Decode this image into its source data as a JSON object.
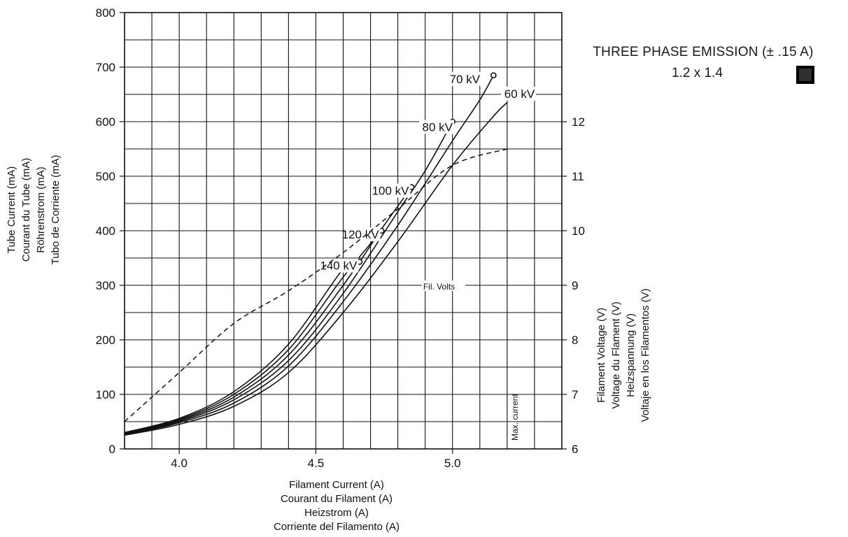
{
  "legend": {
    "title": "THREE PHASE EMISSION (± .15 A)",
    "entry": "1.2 x 1.4",
    "swatch_color": "#2f2f2f"
  },
  "chart_data": {
    "type": "line",
    "xlabel": [
      "Filament Current (A)",
      "Courant du Filament (A)",
      "Heizstrom (A)",
      "Corriente del Filamento (A)"
    ],
    "ylabel": [
      "Tube Current (mA)",
      "Courant du Tube (mA)",
      "Röhrenstrom (mA)",
      "Tubo de Corriente (mA)"
    ],
    "y2label": [
      "Filament Voltage (V)",
      "Voltage du Flament  (V)",
      "Heizspannung (V)",
      "Voltaje en los Filamentos (V)"
    ],
    "xlim": [
      3.8,
      5.4
    ],
    "ylim": [
      0,
      800
    ],
    "y2lim": [
      6,
      12
    ],
    "x_ticks": [
      {
        "value": 4.0,
        "label": "4.0"
      },
      {
        "value": 4.5,
        "label": "4.5"
      },
      {
        "value": 5.0,
        "label": "5.0"
      }
    ],
    "y_ticks": [
      {
        "value": 0,
        "label": "0"
      },
      {
        "value": 100,
        "label": "100"
      },
      {
        "value": 200,
        "label": "200"
      },
      {
        "value": 300,
        "label": "300"
      },
      {
        "value": 400,
        "label": "400"
      },
      {
        "value": 500,
        "label": "500"
      },
      {
        "value": 600,
        "label": "600"
      },
      {
        "value": 700,
        "label": "700"
      },
      {
        "value": 800,
        "label": "800"
      }
    ],
    "y2_ticks": [
      {
        "value": 6,
        "label": "6"
      },
      {
        "value": 7,
        "label": "7"
      },
      {
        "value": 8,
        "label": "8"
      },
      {
        "value": 9,
        "label": "9"
      },
      {
        "value": 10,
        "label": "10"
      },
      {
        "value": 11,
        "label": "11"
      },
      {
        "value": 12,
        "label": "12"
      }
    ],
    "grid": true,
    "series": [
      {
        "name": "60 kV",
        "label_pos": [
          5.27,
          645
        ],
        "x": [
          3.8,
          4.0,
          4.2,
          4.4,
          4.6,
          4.8,
          5.0,
          5.15,
          5.2
        ],
        "y": [
          25,
          45,
          78,
          140,
          250,
          380,
          520,
          610,
          635
        ],
        "end_marker": false
      },
      {
        "name": "70 kV",
        "label_pos": [
          5.07,
          672
        ],
        "x": [
          3.8,
          4.0,
          4.2,
          4.4,
          4.6,
          4.8,
          5.0,
          5.1,
          5.15
        ],
        "y": [
          26,
          48,
          84,
          152,
          270,
          410,
          565,
          640,
          685
        ],
        "end_marker": true
      },
      {
        "name": "80 kV",
        "label_pos": [
          4.97,
          584
        ],
        "x": [
          3.8,
          4.0,
          4.2,
          4.4,
          4.6,
          4.8,
          4.9,
          5.0
        ],
        "y": [
          27,
          50,
          90,
          162,
          285,
          435,
          510,
          600
        ],
        "end_marker": true
      },
      {
        "name": "100 kV",
        "label_pos": [
          4.81,
          467
        ],
        "x": [
          3.8,
          4.0,
          4.2,
          4.4,
          4.6,
          4.75,
          4.85
        ],
        "y": [
          28,
          52,
          95,
          172,
          300,
          410,
          480
        ],
        "end_marker": true
      },
      {
        "name": "120 kV",
        "label_pos": [
          4.7,
          387
        ],
        "x": [
          3.8,
          4.0,
          4.2,
          4.4,
          4.6,
          4.74
        ],
        "y": [
          29,
          54,
          100,
          182,
          315,
          400
        ],
        "end_marker": true
      },
      {
        "name": "140 kV",
        "label_pos": [
          4.62,
          330
        ],
        "x": [
          3.8,
          4.0,
          4.2,
          4.4,
          4.6,
          4.66
        ],
        "y": [
          30,
          56,
          105,
          192,
          330,
          343
        ],
        "end_marker": true
      }
    ],
    "filament_volts": {
      "label": "Fil. Volts",
      "label_pos": [
        4.99,
        301
      ],
      "x": [
        3.8,
        4.0,
        4.2,
        4.4,
        4.6,
        4.8,
        5.0,
        5.2
      ],
      "y_volts": [
        6.5,
        7.4,
        8.3,
        8.9,
        9.6,
        10.4,
        11.2,
        11.5
      ]
    },
    "max_current": {
      "x": 5.2,
      "label": "Max. current"
    }
  }
}
